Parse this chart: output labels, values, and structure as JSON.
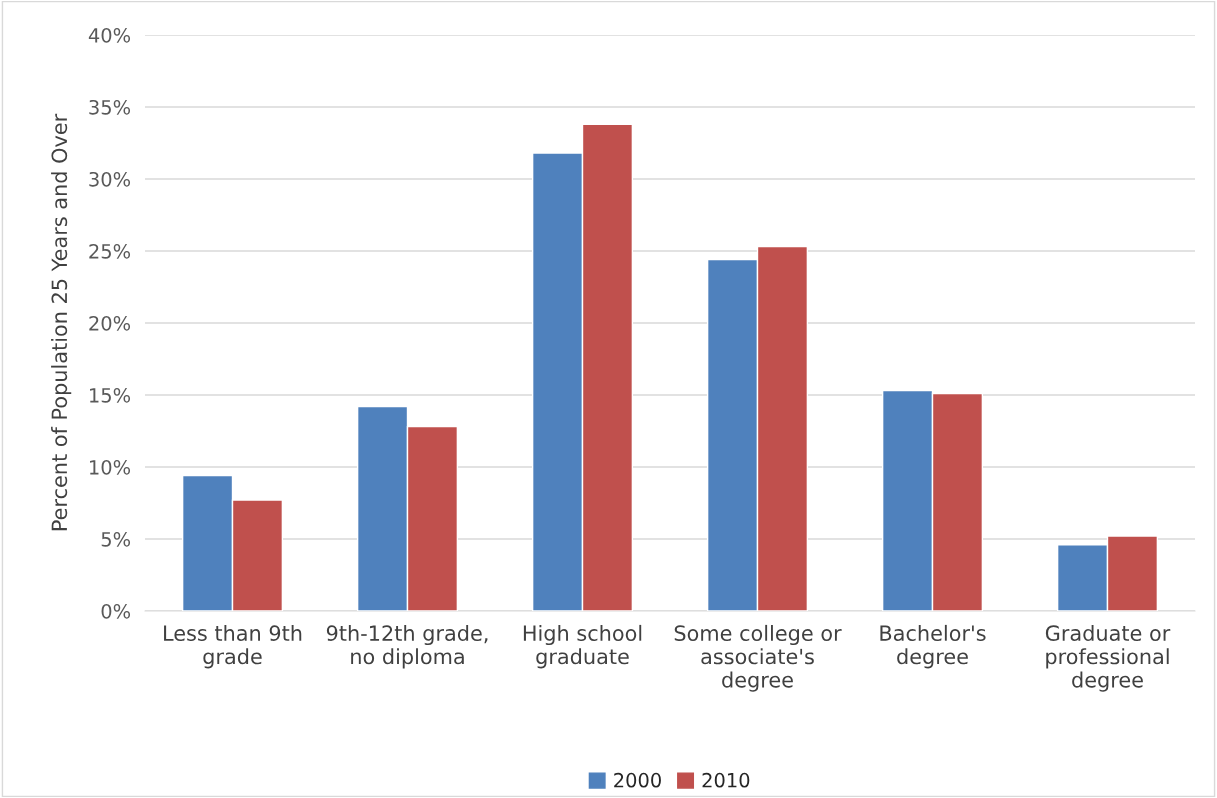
{
  "chart_data": {
    "type": "bar",
    "ylabel": "Percent of Population 25 Years and Over",
    "categories": [
      "Less than 9th grade",
      "9th-12th grade, no diploma",
      "High school graduate",
      "Some college or associate's degree",
      "Bachelor's degree",
      "Graduate or professional degree"
    ],
    "series": [
      {
        "name": "2000",
        "color": "#4f81bd",
        "values": [
          9.4,
          14.2,
          31.8,
          24.4,
          15.3,
          4.6
        ]
      },
      {
        "name": "2010",
        "color": "#c0504d",
        "values": [
          7.7,
          12.8,
          33.8,
          25.3,
          15.1,
          5.2
        ]
      }
    ],
    "ylim": [
      0,
      40
    ],
    "yticks": [
      {
        "value": 0,
        "label": "0%"
      },
      {
        "value": 5,
        "label": "5%"
      },
      {
        "value": 10,
        "label": "10%"
      },
      {
        "value": 15,
        "label": "15%"
      },
      {
        "value": 20,
        "label": "20%"
      },
      {
        "value": 25,
        "label": "25%"
      },
      {
        "value": 30,
        "label": "30%"
      },
      {
        "value": 35,
        "label": "35%"
      },
      {
        "value": 40,
        "label": "40%"
      }
    ],
    "grid": "y",
    "legend": "bottom"
  }
}
